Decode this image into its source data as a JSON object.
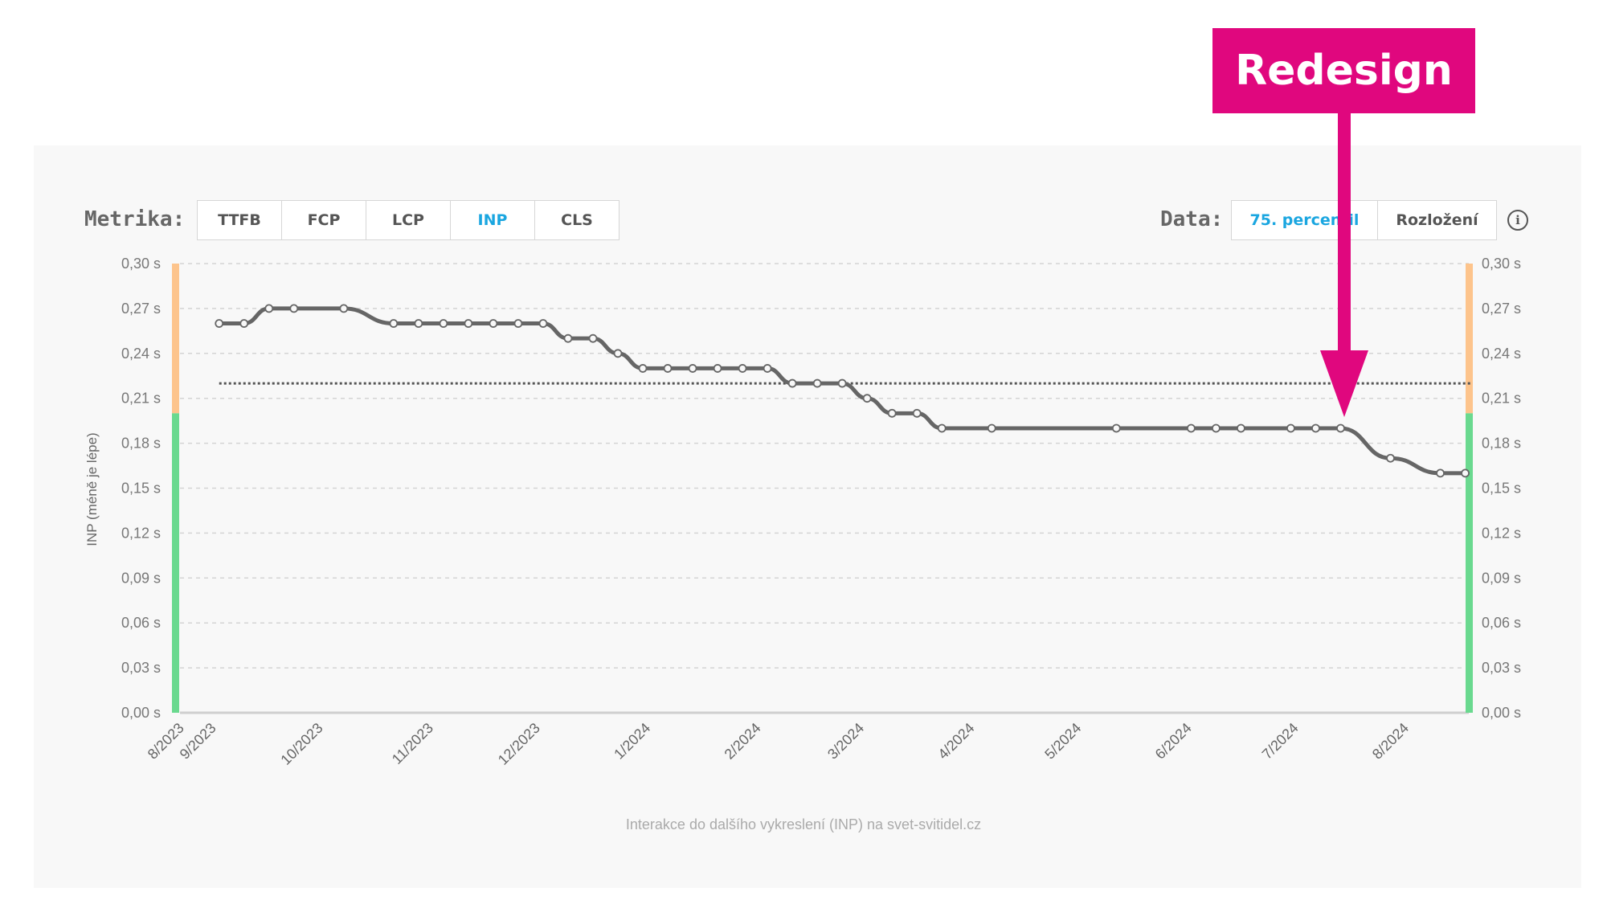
{
  "controls": {
    "metric_label": "Metrika:",
    "metrics": [
      "TTFB",
      "FCP",
      "LCP",
      "INP",
      "CLS"
    ],
    "active_metric": "INP",
    "data_label": "Data:",
    "data_options": [
      "75. percentil",
      "Rozložení"
    ],
    "active_data_option": "75. percentil",
    "info_icon": "info-circle-icon",
    "info_glyph": "i"
  },
  "annotation": {
    "label": "Redesign",
    "color": "#e0077e",
    "points_to_date": "2024-07-21"
  },
  "footer": "Interakce do dalšího vykreslení (INP) na svet-svitidel.cz",
  "colors": {
    "line": "#666666",
    "good": "#6ad98f",
    "needs_improvement": "#fdc48c",
    "active": "#1aa6e0"
  },
  "chart_data": {
    "type": "line",
    "title": "",
    "ylabel": "INP (méně je lépe)",
    "xlabel": "",
    "ylim": [
      0,
      0.3
    ],
    "xlim": [
      "2023-08-23",
      "2024-08-19"
    ],
    "yticks": [
      "0,00 s",
      "0,03 s",
      "0,06 s",
      "0,09 s",
      "0,12 s",
      "0,15 s",
      "0,18 s",
      "0,21 s",
      "0,24 s",
      "0,27 s",
      "0,30 s"
    ],
    "xticks": [
      {
        "date": "2023-08-23",
        "label": "8/2023"
      },
      {
        "date": "2023-09-01",
        "label": "9/2023"
      },
      {
        "date": "2023-10-01",
        "label": "10/2023"
      },
      {
        "date": "2023-11-01",
        "label": "11/2023"
      },
      {
        "date": "2023-12-01",
        "label": "12/2023"
      },
      {
        "date": "2024-01-01",
        "label": "1/2024"
      },
      {
        "date": "2024-02-01",
        "label": "2/2024"
      },
      {
        "date": "2024-03-01",
        "label": "3/2024"
      },
      {
        "date": "2024-04-01",
        "label": "4/2024"
      },
      {
        "date": "2024-05-01",
        "label": "5/2024"
      },
      {
        "date": "2024-06-01",
        "label": "6/2024"
      },
      {
        "date": "2024-07-01",
        "label": "7/2024"
      },
      {
        "date": "2024-08-01",
        "label": "8/2024"
      }
    ],
    "grid": true,
    "threshold": 0.22,
    "bands": {
      "good_max": 0.2,
      "needs_improvement_max": 0.3
    },
    "series": [
      {
        "points": [
          [
            "2023-09-03",
            0.26
          ],
          [
            "2023-09-10",
            0.26
          ],
          [
            "2023-09-17",
            0.27
          ],
          [
            "2023-09-24",
            0.27
          ],
          [
            "2023-10-08",
            0.27
          ],
          [
            "2023-10-22",
            0.26
          ],
          [
            "2023-10-29",
            0.26
          ],
          [
            "2023-11-05",
            0.26
          ],
          [
            "2023-11-12",
            0.26
          ],
          [
            "2023-11-19",
            0.26
          ],
          [
            "2023-11-26",
            0.26
          ],
          [
            "2023-12-03",
            0.26
          ],
          [
            "2023-12-10",
            0.25
          ],
          [
            "2023-12-17",
            0.25
          ],
          [
            "2023-12-24",
            0.24
          ],
          [
            "2023-12-31",
            0.23
          ],
          [
            "2024-01-07",
            0.23
          ],
          [
            "2024-01-14",
            0.23
          ],
          [
            "2024-01-21",
            0.23
          ],
          [
            "2024-01-28",
            0.23
          ],
          [
            "2024-02-04",
            0.23
          ],
          [
            "2024-02-11",
            0.22
          ],
          [
            "2024-02-18",
            0.22
          ],
          [
            "2024-02-25",
            0.22
          ],
          [
            "2024-03-03",
            0.21
          ],
          [
            "2024-03-10",
            0.2
          ],
          [
            "2024-03-17",
            0.2
          ],
          [
            "2024-03-24",
            0.19
          ],
          [
            "2024-04-07",
            0.19
          ],
          [
            "2024-05-12",
            0.19
          ],
          [
            "2024-06-02",
            0.19
          ],
          [
            "2024-06-09",
            0.19
          ],
          [
            "2024-06-16",
            0.19
          ],
          [
            "2024-06-30",
            0.19
          ],
          [
            "2024-07-07",
            0.19
          ],
          [
            "2024-07-14",
            0.19
          ],
          [
            "2024-07-28",
            0.17
          ],
          [
            "2024-08-11",
            0.16
          ],
          [
            "2024-08-18",
            0.16
          ]
        ]
      }
    ]
  }
}
